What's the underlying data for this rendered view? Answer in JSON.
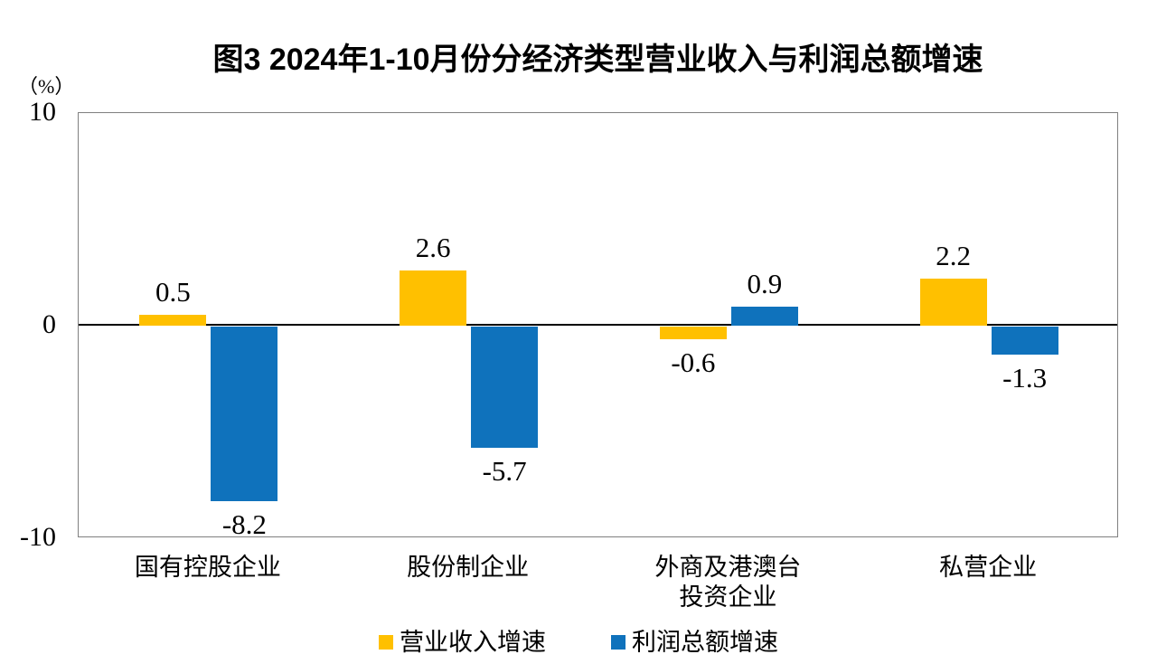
{
  "chart_data": {
    "type": "bar",
    "title": "图3  2024年1-10月份分经济类型营业收入与利润总额增速",
    "unit_label": "（%）",
    "categories": [
      "国有控股企业",
      "股份制企业",
      "外商及港澳台\n投资企业",
      "私营企业"
    ],
    "series": [
      {
        "name": "营业收入增速",
        "color": "#FFC000",
        "values": [
          0.5,
          2.6,
          -0.6,
          2.2
        ]
      },
      {
        "name": "利润总额增速",
        "color": "#0F72BC",
        "values": [
          -8.2,
          -5.7,
          0.9,
          -1.3
        ]
      }
    ],
    "data_labels": [
      [
        "0.5",
        "2.6",
        "-0.6",
        "2.2"
      ],
      [
        "-8.2",
        "-5.7",
        "0.9",
        "-1.3"
      ]
    ],
    "ylim": [
      -10,
      10
    ],
    "yticks": [
      "10",
      "0",
      "-10"
    ],
    "ytick_values": [
      10,
      0,
      -10
    ],
    "grid": false,
    "legend_position": "bottom",
    "colors": {
      "revenue_bar": "#FFC000",
      "profit_bar": "#0F72BC",
      "plot_border": "#808080",
      "zero_line": "#000000",
      "text": "#000000"
    }
  }
}
